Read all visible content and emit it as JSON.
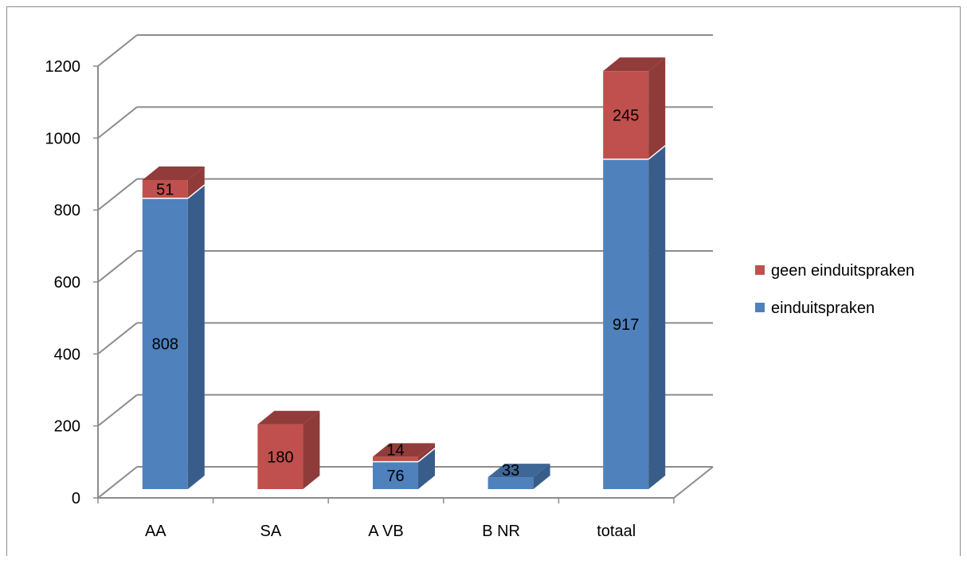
{
  "chart_data": {
    "type": "bar",
    "stacked": true,
    "three_d": true,
    "categories": [
      "AA",
      "SA",
      "A VB",
      "B NR",
      "totaal"
    ],
    "series": [
      {
        "name": "einduitspraken",
        "values": [
          808,
          0,
          76,
          33,
          917
        ],
        "labels": [
          "808",
          "",
          "76",
          "33",
          "917"
        ]
      },
      {
        "name": "geen einduitspraken",
        "values": [
          51,
          180,
          14,
          0,
          245
        ],
        "labels": [
          "51",
          "180",
          "14",
          "",
          "245"
        ]
      }
    ],
    "y_ticks": [
      "0",
      "200",
      "400",
      "600",
      "800",
      "1000",
      "1200"
    ],
    "ylim": [
      0,
      1200
    ],
    "grid": true,
    "legend_position": "right",
    "colors": {
      "einduitspraken_front": "#4f81bd",
      "einduitspraken_side": "#385d8a",
      "einduitspraken_top": "#3f6796",
      "geen_front": "#c0504d",
      "geen_side": "#8e3b39",
      "geen_top": "#913c3a",
      "grid": "#8c8c8c"
    }
  }
}
